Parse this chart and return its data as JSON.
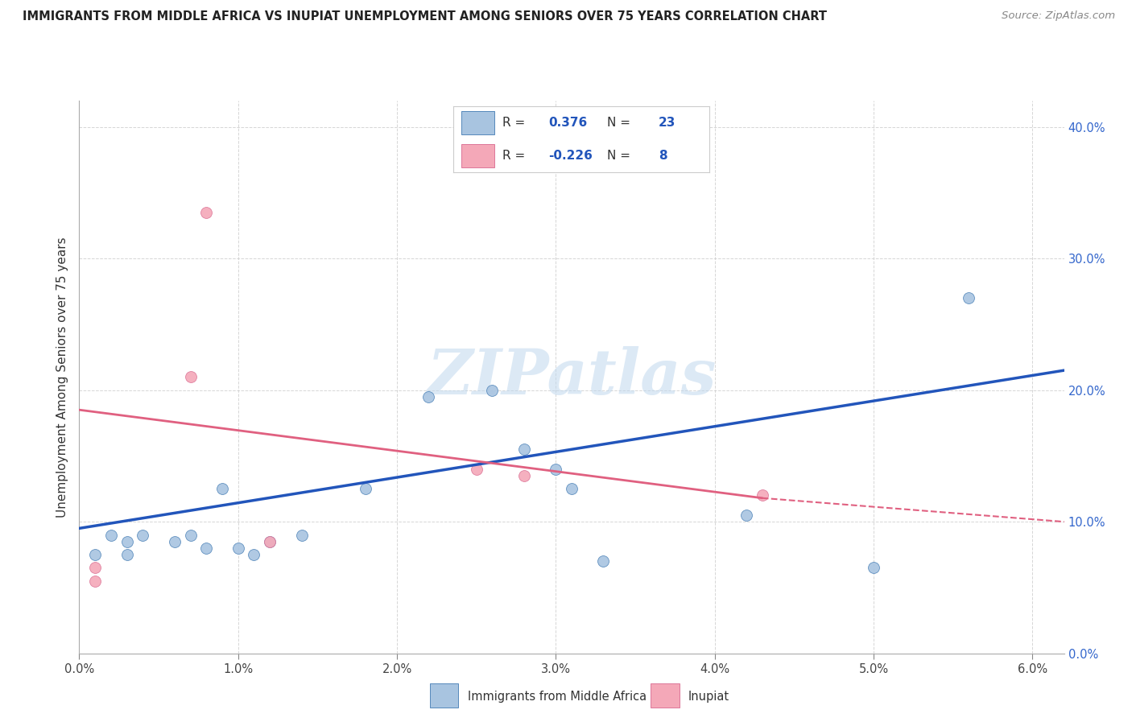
{
  "title": "IMMIGRANTS FROM MIDDLE AFRICA VS INUPIAT UNEMPLOYMENT AMONG SENIORS OVER 75 YEARS CORRELATION CHART",
  "source": "Source: ZipAtlas.com",
  "ylabel": "Unemployment Among Seniors over 75 years",
  "xlim": [
    0.0,
    0.062
  ],
  "ylim": [
    0.0,
    0.42
  ],
  "x_ticks": [
    0.0,
    0.01,
    0.02,
    0.03,
    0.04,
    0.05,
    0.06
  ],
  "x_ticklabels": [
    "0.0%",
    "1.0%",
    "2.0%",
    "3.0%",
    "4.0%",
    "5.0%",
    "6.0%"
  ],
  "y_ticks": [
    0.0,
    0.1,
    0.2,
    0.3,
    0.4
  ],
  "y_ticklabels": [
    "0.0%",
    "10.0%",
    "20.0%",
    "30.0%",
    "40.0%"
  ],
  "blue_scatter": [
    [
      0.001,
      0.075
    ],
    [
      0.002,
      0.09
    ],
    [
      0.003,
      0.085
    ],
    [
      0.003,
      0.075
    ],
    [
      0.004,
      0.09
    ],
    [
      0.006,
      0.085
    ],
    [
      0.007,
      0.09
    ],
    [
      0.008,
      0.08
    ],
    [
      0.009,
      0.125
    ],
    [
      0.01,
      0.08
    ],
    [
      0.011,
      0.075
    ],
    [
      0.012,
      0.085
    ],
    [
      0.014,
      0.09
    ],
    [
      0.018,
      0.125
    ],
    [
      0.022,
      0.195
    ],
    [
      0.026,
      0.2
    ],
    [
      0.028,
      0.155
    ],
    [
      0.03,
      0.14
    ],
    [
      0.031,
      0.125
    ],
    [
      0.033,
      0.07
    ],
    [
      0.042,
      0.105
    ],
    [
      0.05,
      0.065
    ],
    [
      0.056,
      0.27
    ]
  ],
  "pink_scatter": [
    [
      0.001,
      0.065
    ],
    [
      0.001,
      0.055
    ],
    [
      0.007,
      0.21
    ],
    [
      0.008,
      0.335
    ],
    [
      0.012,
      0.085
    ],
    [
      0.025,
      0.14
    ],
    [
      0.028,
      0.135
    ],
    [
      0.043,
      0.12
    ]
  ],
  "blue_line": {
    "x": [
      0.0,
      0.062
    ],
    "y": [
      0.095,
      0.215
    ]
  },
  "pink_line_solid": {
    "x": [
      0.0,
      0.043
    ],
    "y": [
      0.185,
      0.118
    ]
  },
  "pink_line_dashed": {
    "x": [
      0.043,
      0.062
    ],
    "y": [
      0.118,
      0.1
    ]
  },
  "legend_blue_R": "0.376",
  "legend_blue_N": "23",
  "legend_pink_R": "-0.226",
  "legend_pink_N": "8",
  "scatter_color_blue": "#a8c4e0",
  "scatter_edge_blue": "#5588bb",
  "scatter_color_pink": "#f4a8b8",
  "scatter_edge_pink": "#dd7799",
  "line_color_blue": "#2255bb",
  "line_color_pink": "#e06080",
  "watermark": "ZIPatlas",
  "scatter_size": 100,
  "legend_label_blue": "Immigrants from Middle Africa",
  "legend_label_pink": "Inupiat"
}
